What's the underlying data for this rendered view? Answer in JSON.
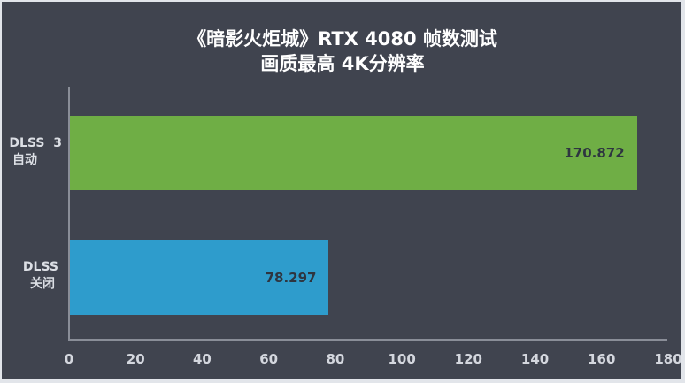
{
  "chart_data": {
    "type": "bar",
    "orientation": "horizontal",
    "title": "《暗影火炬城》RTX 4080 帧数测试",
    "subtitle": "画质最高 4K分辨率",
    "categories": [
      "DLSS 3 自动",
      "DLSS 关闭"
    ],
    "category_lines": [
      [
        "DLSS  3",
        "自动"
      ],
      [
        "DLSS",
        "关闭"
      ]
    ],
    "values": [
      170.872,
      78.297
    ],
    "value_labels": [
      "170.872",
      "78.297"
    ],
    "colors": [
      "#6fae45",
      "#2e9ccc"
    ],
    "xlabel": "",
    "ylabel": "",
    "xlim": [
      0,
      180
    ],
    "xticks": [
      "0",
      "20",
      "40",
      "60",
      "80",
      "100",
      "120",
      "140",
      "160",
      "180"
    ],
    "grid": false,
    "legend": null
  },
  "colors": {
    "background": "#40444f",
    "border": "#e2e5ea",
    "axis": "#8a8e98"
  }
}
